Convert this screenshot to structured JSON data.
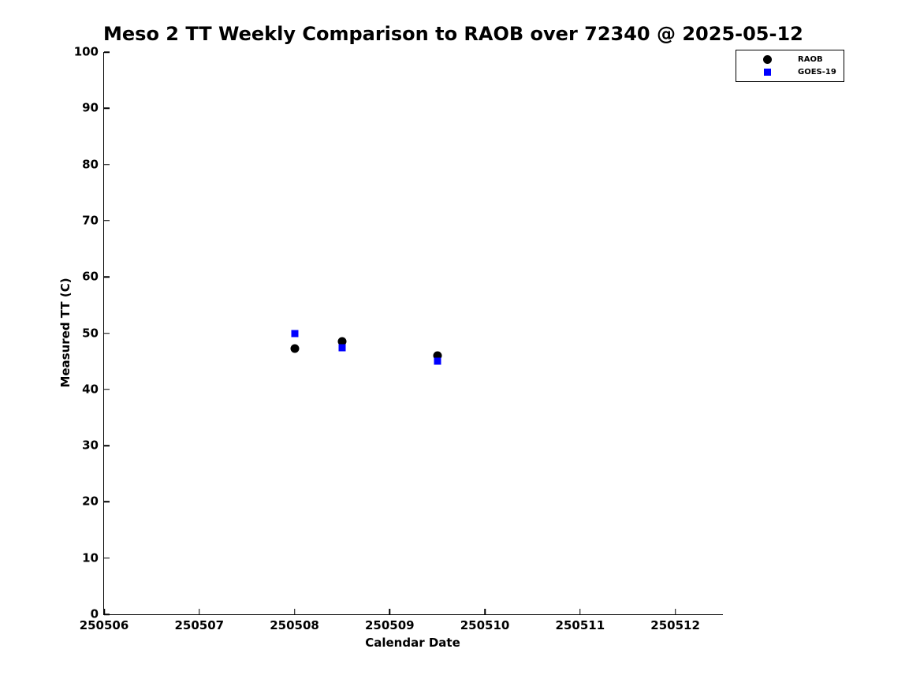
{
  "chart_data": {
    "type": "scatter",
    "title": "Meso 2 TT Weekly Comparison to RAOB over 72340 @ 2025-05-12",
    "xlabel": "Calendar Date",
    "ylabel": "Measured TT (C)",
    "xlim": [
      250506,
      250512.5
    ],
    "ylim": [
      0,
      100
    ],
    "xticks": [
      250506,
      250507,
      250508,
      250509,
      250510,
      250511,
      250512
    ],
    "yticks": [
      0,
      10,
      20,
      30,
      40,
      50,
      60,
      70,
      80,
      90,
      100
    ],
    "x": [
      250508.0,
      250508.5,
      250509.5
    ],
    "series": [
      {
        "name": "RAOB",
        "marker": "circle",
        "color": "#000000",
        "values": [
          47.2,
          48.5,
          46.0
        ]
      },
      {
        "name": "GOES-19",
        "marker": "square",
        "color": "#0000ff",
        "values": [
          49.9,
          47.4,
          45.0
        ]
      }
    ],
    "grid": false,
    "legend_position": "top-right",
    "background_color": "#ffffff",
    "axis_color": "#000000"
  }
}
